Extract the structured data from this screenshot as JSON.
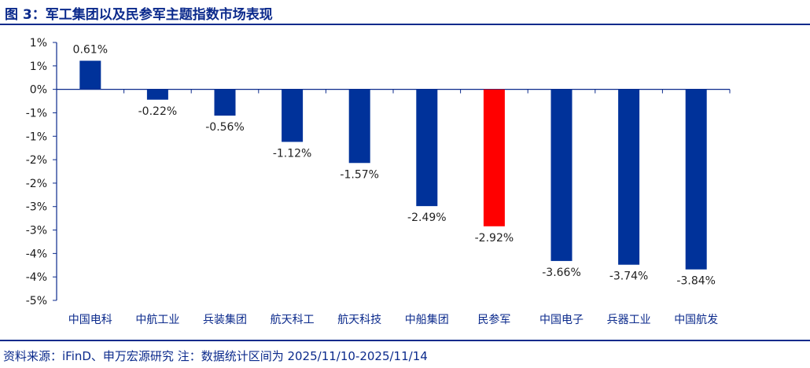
{
  "title": "图 3：军工集团以及民参军主题指数市场表现",
  "source": "资料来源：iFinD、申万宏源研究 注：数据统计区间为 2025/11/10-2025/11/14",
  "colors": {
    "bar": "#00329a",
    "highlight": "#ff0000",
    "axis": "#0b2a8c",
    "text": "#0b2a8c"
  },
  "chart_data": {
    "type": "bar",
    "title": "",
    "xlabel": "",
    "ylabel": "",
    "categories": [
      "中国电科",
      "中航工业",
      "兵装集团",
      "航天科工",
      "航天科技",
      "中船集团",
      "民参军",
      "中国电子",
      "兵器工业",
      "中国航发"
    ],
    "values": [
      0.61,
      -0.22,
      -0.56,
      -1.12,
      -1.57,
      -2.49,
      -2.92,
      -3.66,
      -3.74,
      -3.84
    ],
    "data_labels": [
      "0.61%",
      "-0.22%",
      "-0.56%",
      "-1.12%",
      "-1.57%",
      "-2.49%",
      "-2.92%",
      "-3.66%",
      "-3.74%",
      "-3.84%"
    ],
    "highlight_index": 6,
    "ylim": [
      -4.5,
      1.0
    ],
    "yticks": [
      1.0,
      0.5,
      0.0,
      -0.5,
      -1.0,
      -1.5,
      -2.0,
      -2.5,
      -3.0,
      -3.5,
      -4.0,
      -4.5
    ],
    "ytick_labels": [
      "1%",
      "1%",
      "0%",
      "-1%",
      "-1%",
      "-2%",
      "-2%",
      "-3%",
      "-3%",
      "-4%",
      "-4%",
      "-5%"
    ],
    "grid": false,
    "legend": "none"
  }
}
